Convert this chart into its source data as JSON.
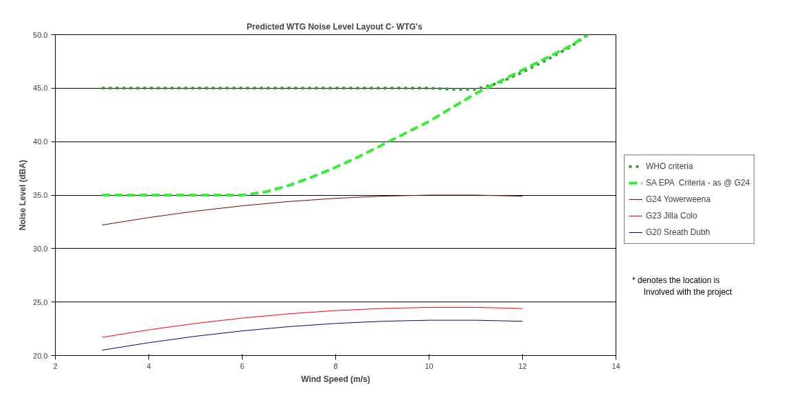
{
  "chart_data": {
    "type": "line",
    "title": "Predicted WTG Noise Level  Layout C- WTG's",
    "xlabel": "Wind Speed (m/s)",
    "ylabel": "Noise Level (dBA)",
    "xlim": [
      2,
      14
    ],
    "xticks": [
      2,
      4,
      6,
      8,
      10,
      12,
      14
    ],
    "ylim": [
      20,
      50
    ],
    "yticks": [
      {
        "value": 20,
        "label": "20.0"
      },
      {
        "value": 25,
        "label": "25.0"
      },
      {
        "value": 30,
        "label": "30.0"
      },
      {
        "value": 35,
        "label": "35.0"
      },
      {
        "value": 40,
        "label": "40.0"
      },
      {
        "value": 45,
        "label": "45.0"
      },
      {
        "value": 50,
        "label": "50.0"
      }
    ],
    "grid": "y",
    "legend": "right",
    "marker": "none",
    "annotations": [
      "* denotes the location is\n     Involved with the project"
    ],
    "series": [
      {
        "name": "WHO criteria",
        "color": "#339933",
        "line_style": "dotted",
        "x": [
          3,
          4,
          5,
          6,
          7,
          8,
          9,
          10,
          10.5,
          11,
          11.5,
          12,
          12.5,
          13,
          13.4
        ],
        "values": [
          45,
          45,
          45,
          45,
          45,
          45,
          45,
          45,
          44.9,
          44.9,
          45.5,
          46.5,
          47.6,
          48.8,
          50
        ]
      },
      {
        "name": "SA EPA  Criteria - as @ G24",
        "color": "#33ee33",
        "line_style": "dashed",
        "x": [
          3,
          4,
          5,
          6,
          6.5,
          7,
          7.5,
          8,
          8.5,
          9,
          9.5,
          10,
          10.5,
          11,
          11.5,
          12,
          12.5,
          13,
          13.4
        ],
        "values": [
          35,
          35,
          35,
          35,
          35.3,
          35.9,
          36.7,
          37.6,
          38.6,
          39.7,
          40.8,
          41.9,
          43.2,
          44.5,
          45.6,
          46.7,
          47.8,
          48.9,
          50
        ]
      },
      {
        "name": "G24 Yowerweena",
        "color": "#800000",
        "line_style": "solid",
        "x": [
          3,
          4,
          5,
          6,
          7,
          8,
          9,
          10,
          11,
          12
        ],
        "values": [
          32.2,
          32.9,
          33.5,
          34.0,
          34.4,
          34.7,
          34.9,
          35.0,
          35.0,
          34.9
        ]
      },
      {
        "name": "G23 Jilla Colo",
        "color": "#ff0000",
        "line_style": "solid",
        "x": [
          3,
          4,
          5,
          6,
          7,
          8,
          9,
          10,
          11,
          12
        ],
        "values": [
          21.7,
          22.4,
          23.0,
          23.5,
          23.9,
          24.2,
          24.4,
          24.5,
          24.5,
          24.4
        ]
      },
      {
        "name": "G20 Sreath Dubh",
        "color": "#000080",
        "line_style": "solid",
        "x": [
          3,
          4,
          5,
          6,
          7,
          8,
          9,
          10,
          11,
          12
        ],
        "values": [
          20.5,
          21.2,
          21.8,
          22.3,
          22.7,
          23.0,
          23.2,
          23.3,
          23.3,
          23.2
        ]
      }
    ]
  }
}
